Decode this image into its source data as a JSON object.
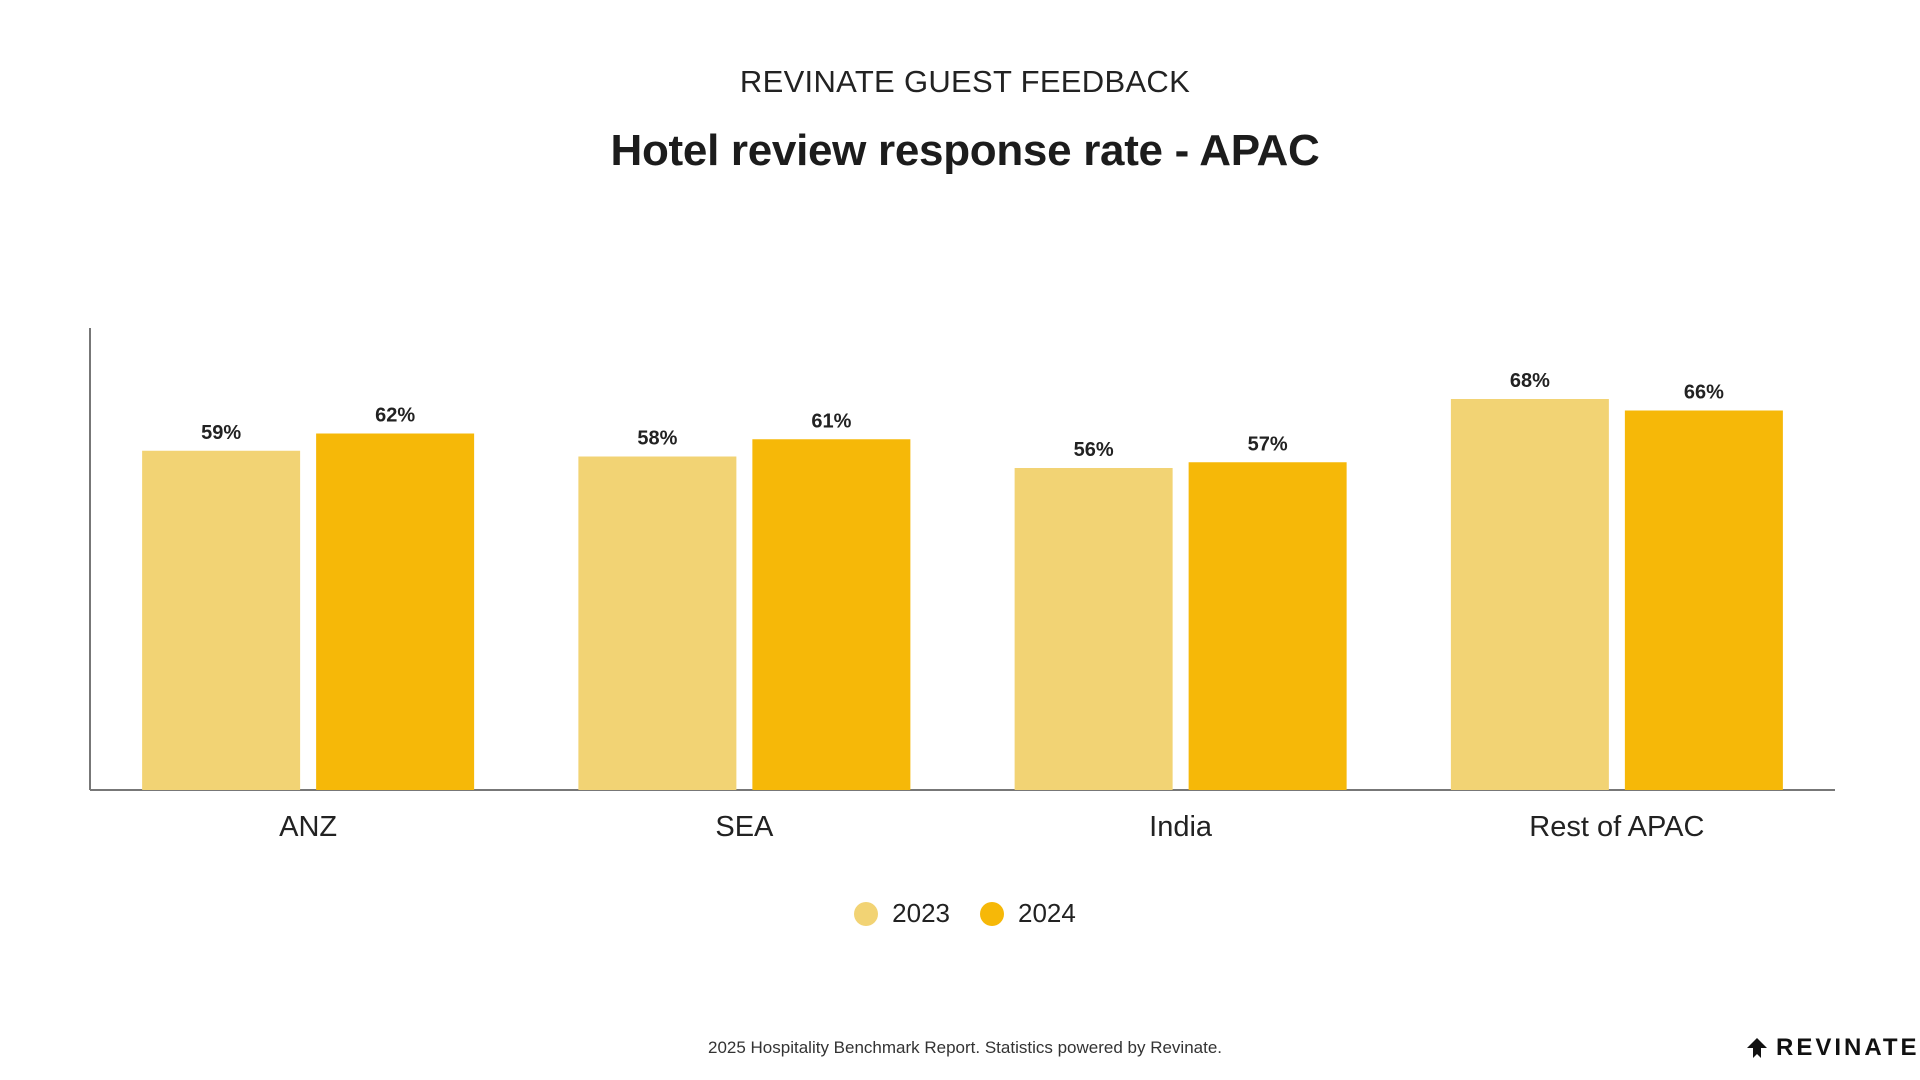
{
  "header": {
    "supertitle": "REVINATE GUEST FEEDBACK",
    "title": "Hotel review response rate - APAC"
  },
  "chart_data": {
    "type": "bar",
    "title": "Hotel review response rate - APAC",
    "categories": [
      "ANZ",
      "SEA",
      "India",
      "Rest of APAC"
    ],
    "series": [
      {
        "name": "2023",
        "values": [
          59,
          58,
          56,
          68
        ],
        "labels": [
          "59%",
          "58%",
          "56%",
          "68%"
        ],
        "color": "#F2D374"
      },
      {
        "name": "2024",
        "values": [
          62,
          61,
          57,
          66
        ],
        "labels": [
          "62%",
          "61%",
          "57%",
          "66%"
        ],
        "color": "#F6B808"
      }
    ],
    "ylim": [
      0,
      80
    ],
    "grid": false,
    "legend_position": "bottom-center"
  },
  "legend": [
    {
      "label": "2023",
      "color": "#F2D374"
    },
    {
      "label": "2024",
      "color": "#F6B808"
    }
  ],
  "footer": {
    "note": "2025 Hospitality Benchmark Report. Statistics powered by Revinate."
  },
  "brand": {
    "name": "REVINATE",
    "icon": "revinate-logo-icon"
  }
}
